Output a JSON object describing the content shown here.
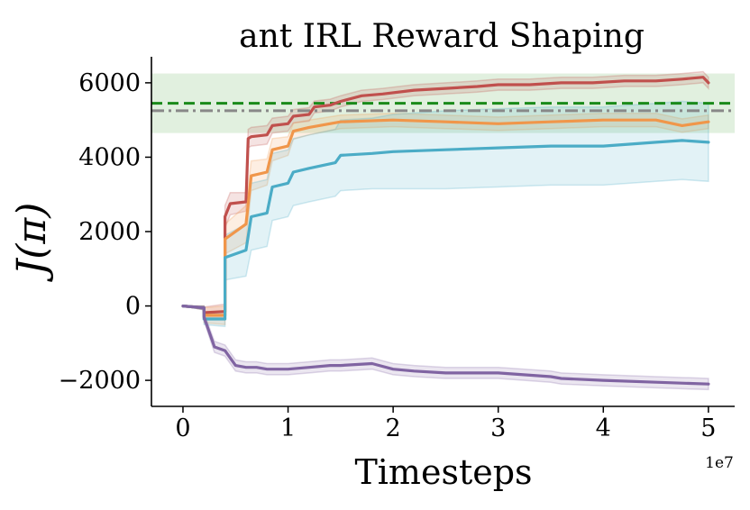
{
  "chart_data": {
    "type": "line",
    "title": "ant IRL Reward Shaping",
    "xlabel": "Timesteps",
    "ylabel": "J(π)",
    "x_offset_label": "1e7",
    "xlim": [
      -0.3,
      5.25
    ],
    "ylim": [
      -2700,
      6700
    ],
    "xticks": [
      0,
      1,
      2,
      3,
      4,
      5
    ],
    "xtick_labels": [
      "0",
      "1",
      "2",
      "3",
      "4",
      "5"
    ],
    "yticks": [
      -2000,
      0,
      2000,
      4000,
      6000
    ],
    "ytick_labels": [
      "−2000",
      "0",
      "2000",
      "4000",
      "6000"
    ],
    "grid": false,
    "reference_band": {
      "low": 4650,
      "high": 6250,
      "color": "#a8d5a2"
    },
    "reference_lines": [
      {
        "y": 5450,
        "color": "#1a8a1a",
        "style": "dashed"
      },
      {
        "y": 5250,
        "color": "#888888",
        "style": "dashdot"
      }
    ],
    "series": [
      {
        "color": "#c0504d",
        "x": [
          0,
          0.2,
          0.2,
          0.4,
          0.4,
          0.45,
          0.6,
          0.62,
          0.65,
          0.8,
          0.85,
          1.0,
          1.05,
          1.2,
          1.25,
          1.4,
          1.5,
          1.7,
          1.9,
          2.2,
          2.5,
          2.8,
          3.0,
          3.3,
          3.6,
          3.9,
          4.2,
          4.5,
          4.75,
          4.95,
          5.0
        ],
        "y": [
          0,
          -50,
          -180,
          -150,
          2400,
          2750,
          2800,
          4500,
          4550,
          4600,
          4850,
          4900,
          5100,
          5150,
          5350,
          5400,
          5500,
          5650,
          5700,
          5800,
          5850,
          5900,
          5950,
          5950,
          6000,
          6000,
          6050,
          6050,
          6100,
          6150,
          6000
        ],
        "band": [
          0,
          50,
          150,
          200,
          300,
          300,
          250,
          250,
          250,
          250,
          200,
          200,
          180,
          180,
          160,
          160,
          150,
          150,
          150,
          150,
          150,
          150,
          150,
          150,
          150,
          150,
          150,
          150,
          150,
          150,
          150
        ]
      },
      {
        "color": "#f0964a",
        "x": [
          0,
          0.2,
          0.2,
          0.4,
          0.4,
          0.6,
          0.65,
          0.8,
          0.85,
          1.0,
          1.05,
          1.2,
          1.5,
          2.0,
          2.5,
          3.0,
          3.5,
          4.0,
          4.5,
          4.75,
          5.0
        ],
        "y": [
          0,
          -50,
          -250,
          -250,
          1800,
          2200,
          3500,
          3600,
          4200,
          4300,
          4700,
          4800,
          4950,
          5000,
          4950,
          4900,
          4950,
          5000,
          5000,
          4850,
          4950
        ],
        "band": [
          0,
          50,
          200,
          250,
          400,
          500,
          400,
          350,
          300,
          250,
          220,
          200,
          180,
          180,
          180,
          180,
          180,
          180,
          180,
          180,
          180
        ]
      },
      {
        "color": "#4bacc6",
        "x": [
          0,
          0.2,
          0.2,
          0.4,
          0.4,
          0.6,
          0.65,
          0.8,
          0.85,
          1.0,
          1.05,
          1.2,
          1.45,
          1.5,
          1.8,
          2.0,
          2.5,
          3.0,
          3.5,
          4.0,
          4.5,
          4.75,
          5.0
        ],
        "y": [
          0,
          -50,
          -350,
          -350,
          1300,
          1500,
          2400,
          2500,
          3200,
          3300,
          3600,
          3700,
          3850,
          4050,
          4100,
          4150,
          4200,
          4250,
          4300,
          4300,
          4400,
          4450,
          4400
        ],
        "band": [
          0,
          50,
          150,
          200,
          600,
          700,
          900,
          900,
          900,
          900,
          900,
          900,
          900,
          950,
          950,
          1000,
          1050,
          1050,
          1050,
          1050,
          1050,
          1050,
          1050
        ]
      },
      {
        "color": "#8064a2",
        "x": [
          0,
          0.2,
          0.2,
          0.3,
          0.4,
          0.5,
          0.6,
          0.7,
          0.8,
          0.9,
          1.0,
          1.2,
          1.4,
          1.5,
          1.8,
          2.0,
          2.2,
          2.5,
          3.0,
          3.5,
          3.6,
          4.0,
          4.5,
          5.0
        ],
        "y": [
          0,
          -50,
          -300,
          -1100,
          -1200,
          -1600,
          -1650,
          -1650,
          -1700,
          -1700,
          -1700,
          -1650,
          -1600,
          -1600,
          -1550,
          -1700,
          -1750,
          -1800,
          -1800,
          -1900,
          -1950,
          -2000,
          -2050,
          -2100
        ],
        "band": [
          0,
          50,
          100,
          150,
          150,
          150,
          150,
          150,
          150,
          150,
          150,
          150,
          150,
          150,
          150,
          150,
          150,
          150,
          150,
          150,
          150,
          150,
          150,
          150
        ]
      }
    ]
  }
}
